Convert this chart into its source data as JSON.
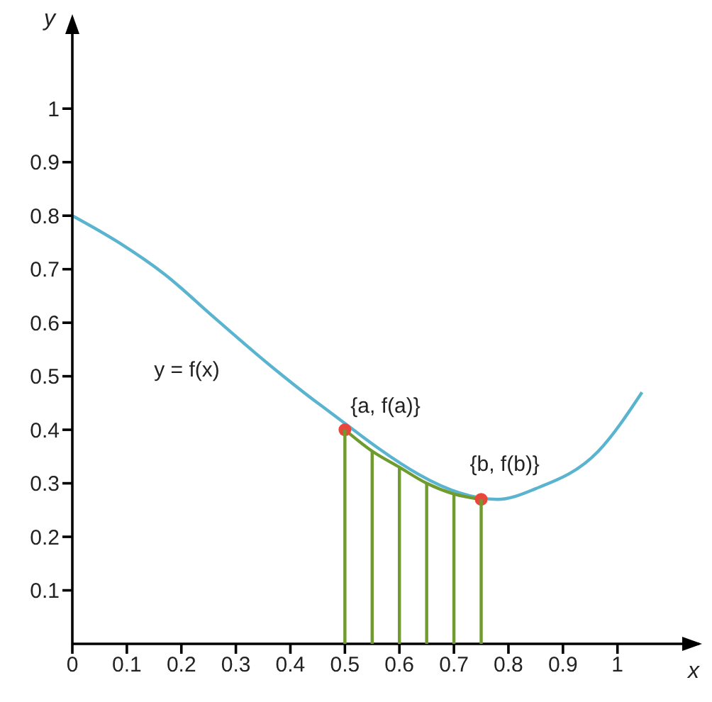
{
  "chart_data": {
    "type": "line",
    "xlabel": "x",
    "ylabel": "y",
    "xlim": [
      0,
      1.15
    ],
    "ylim": [
      0,
      1.15
    ],
    "xticks": [
      {
        "value": 0,
        "label": "0"
      },
      0.1,
      0.2,
      0.3,
      0.4,
      0.5,
      0.6,
      0.7,
      0.8,
      0.9,
      1
    ],
    "yticks": [
      0.1,
      0.2,
      0.3,
      0.4,
      0.5,
      0.6,
      0.7,
      0.8,
      0.9,
      1
    ],
    "series": [
      {
        "color": "#5ab4cf",
        "x": [
          0,
          0.085,
          0.17,
          0.26,
          0.375,
          0.45,
          0.5,
          0.55,
          0.6,
          0.65,
          0.7,
          0.75,
          0.78,
          0.85,
          0.965,
          1.045
        ],
        "values": [
          0.8,
          0.75,
          0.69,
          0.61,
          0.51,
          0.45,
          null,
          null,
          null,
          null,
          null,
          null,
          0.27,
          0.29,
          0.36,
          0.47
        ]
      },
      {
        "type": "line",
        "color": "#6f9b2f",
        "x": [
          0.5,
          0.55,
          0.6,
          0.65,
          0.7,
          0.75
        ],
        "values": [
          0.4,
          0.36,
          0.33,
          0.3,
          0.28,
          0.27
        ]
      },
      {
        "type": "bar",
        "color": "#6f9b2f",
        "x": [
          0.5,
          0.55,
          0.6,
          0.65,
          0.7,
          0.75
        ],
        "values": [
          0.4,
          0.36,
          0.33,
          0.3,
          0.28,
          0.27
        ]
      },
      {
        "type": "scatter",
        "marker": "circle",
        "color": "#e8473b",
        "x": [
          0.5,
          0.75
        ],
        "values": [
          0.4,
          0.27
        ]
      }
    ],
    "annotations": [
      {
        "text": "{a, f(a)}",
        "x": 0.5,
        "y": 0.4
      },
      {
        "text": "{b, f(b)}",
        "x": 0.75,
        "y": 0.27
      },
      "y = f(x)"
    ]
  }
}
